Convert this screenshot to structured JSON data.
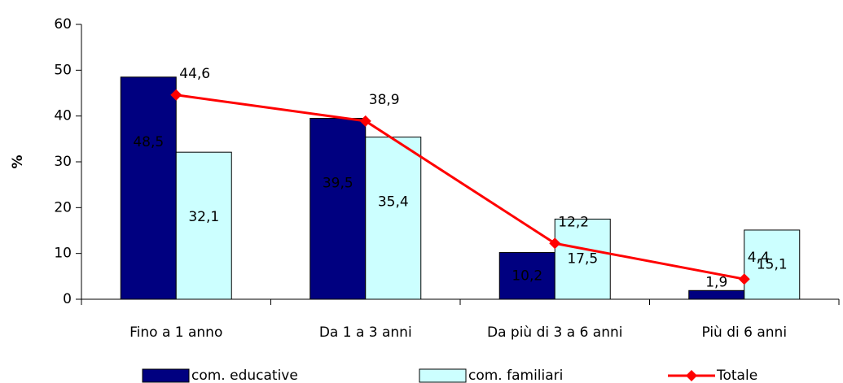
{
  "chart_data": {
    "type": "bar",
    "y_label": "%",
    "categories": [
      "Fino a 1 anno",
      "Da 1 a 3 anni",
      "Da più di 3 a 6 anni",
      "Più di 6 anni"
    ],
    "series": [
      {
        "name": "com. educative",
        "type": "bar",
        "color": "#000080",
        "values": [
          48.5,
          39.5,
          10.2,
          1.9
        ],
        "value_labels": [
          "48,5",
          "39,5",
          "10,2",
          "1,9"
        ]
      },
      {
        "name": "com. familiari",
        "type": "bar",
        "color": "#ccffff",
        "values": [
          32.1,
          35.4,
          17.5,
          15.1
        ],
        "value_labels": [
          "32,1",
          "35,4",
          "17,5",
          "15,1"
        ]
      },
      {
        "name": "Totale",
        "type": "line",
        "color": "#ff0000",
        "values": [
          44.6,
          38.9,
          12.2,
          4.4
        ],
        "value_labels": [
          "44,6",
          "38,9",
          "12,2",
          "4,4"
        ]
      }
    ],
    "ylim": [
      0,
      60
    ],
    "yticks": [
      0,
      10,
      20,
      30,
      40,
      50,
      60
    ]
  }
}
